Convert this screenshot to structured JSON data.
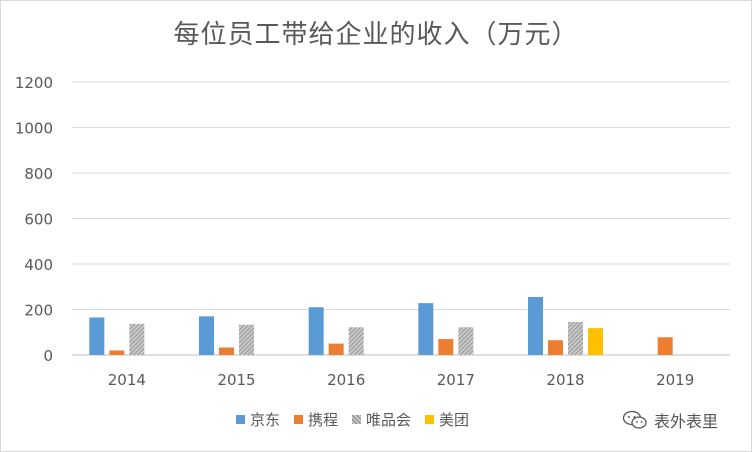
{
  "chart_data": {
    "type": "bar",
    "title": "每位员工带给企业的收入（万元）",
    "categories": [
      "2014",
      "2015",
      "2016",
      "2017",
      "2018",
      "2019"
    ],
    "series": [
      {
        "name": "京东",
        "color": "#5b9bd5",
        "values": [
          165,
          170,
          210,
          228,
          255,
          null
        ]
      },
      {
        "name": "携程",
        "color": "#ed7d31",
        "values": [
          20,
          33,
          50,
          70,
          65,
          78
        ]
      },
      {
        "name": "唯品会",
        "color": "#a5a5a5",
        "pattern": "diagonal-stripes",
        "values": [
          137,
          133,
          122,
          122,
          145,
          null
        ]
      },
      {
        "name": "美团",
        "color": "#ffc000",
        "values": [
          null,
          null,
          null,
          null,
          118,
          null
        ]
      }
    ],
    "ylim": [
      0,
      1200
    ],
    "yticks": [
      0,
      200,
      400,
      600,
      800,
      1000,
      1200
    ],
    "grid": true,
    "legend": "bottom"
  },
  "watermark": {
    "text": "表外表里",
    "icon": "wechat-chat-icon"
  }
}
